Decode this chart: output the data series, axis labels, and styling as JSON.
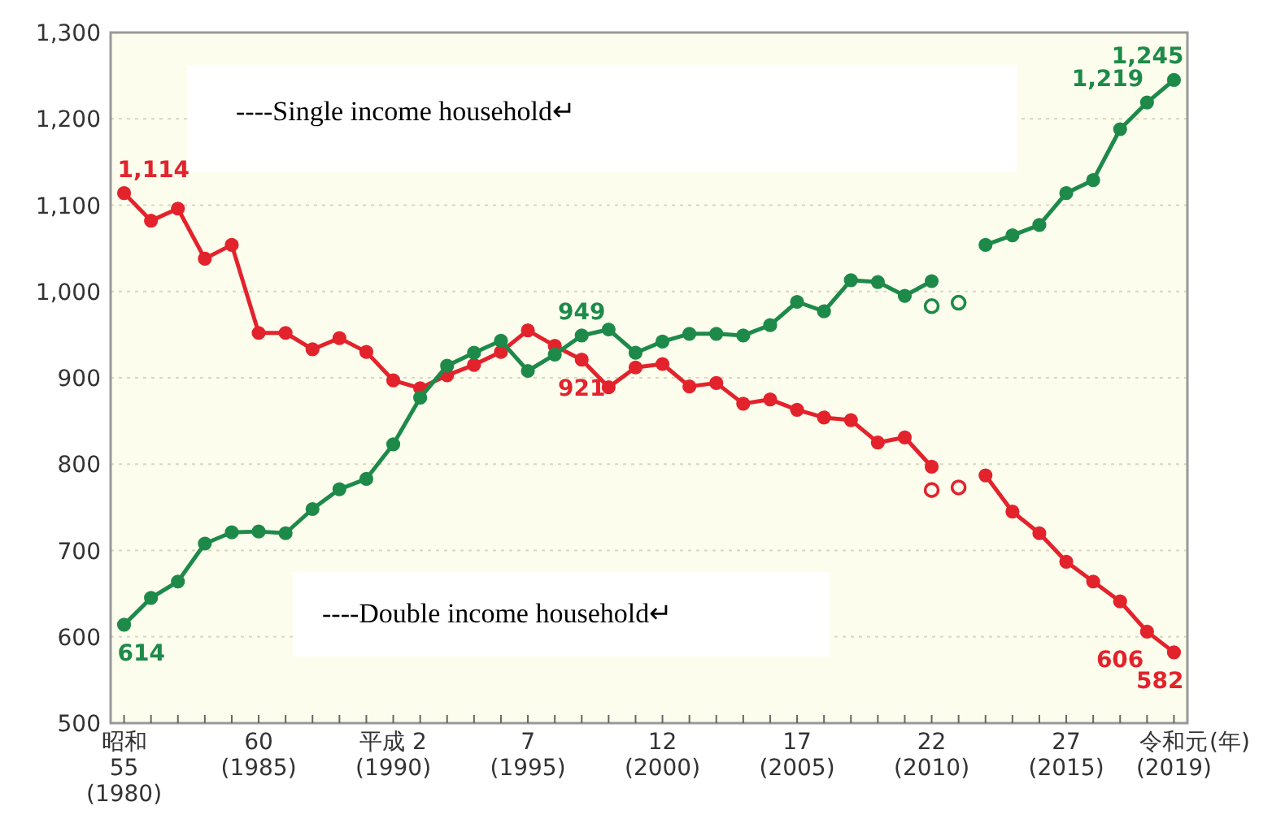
{
  "chart_data": {
    "type": "line",
    "xlabel": "(年)",
    "categories": [
      "昭和\n55\n(1980)",
      null,
      null,
      null,
      null,
      "60\n(1985)",
      null,
      null,
      null,
      null,
      "平成 2\n(1990)",
      null,
      null,
      null,
      null,
      "7\n(1995)",
      null,
      null,
      null,
      null,
      "12\n(2000)",
      null,
      null,
      null,
      null,
      "17\n(2005)",
      null,
      null,
      null,
      null,
      "22\n(2010)",
      null,
      null,
      null,
      null,
      "27\n(2015)",
      null,
      null,
      null,
      "令和元\n(2019)"
    ],
    "series": [
      {
        "color": "#e3232c",
        "values": [
          1114,
          1082,
          1096,
          1038,
          1054,
          952,
          952,
          933,
          946,
          930,
          897,
          888,
          903,
          915,
          930,
          955,
          937,
          921,
          889,
          912,
          916,
          890,
          894,
          870,
          875,
          863,
          854,
          851,
          825,
          831,
          797,
          null,
          787,
          745,
          720,
          687,
          664,
          641,
          606,
          582
        ],
        "value_labels": [
          "1,114",
          null,
          null,
          null,
          null,
          null,
          null,
          null,
          null,
          null,
          null,
          null,
          null,
          null,
          null,
          null,
          null,
          "921",
          null,
          null,
          null,
          null,
          null,
          null,
          null,
          null,
          null,
          null,
          null,
          null,
          null,
          null,
          null,
          null,
          null,
          null,
          null,
          null,
          "606",
          "582"
        ]
      },
      {
        "color": "#1e8a4a",
        "values": [
          614,
          645,
          664,
          708,
          721,
          722,
          720,
          748,
          771,
          783,
          823,
          877,
          914,
          929,
          943,
          908,
          927,
          949,
          956,
          929,
          942,
          951,
          951,
          949,
          961,
          988,
          977,
          1013,
          1011,
          995,
          1012,
          null,
          1054,
          1065,
          1077,
          1114,
          1129,
          1188,
          1219,
          1245
        ],
        "value_labels": [
          "614",
          null,
          null,
          null,
          null,
          null,
          null,
          null,
          null,
          null,
          null,
          null,
          null,
          null,
          null,
          null,
          null,
          "949",
          null,
          null,
          null,
          null,
          null,
          null,
          null,
          null,
          null,
          null,
          null,
          null,
          null,
          null,
          null,
          null,
          null,
          null,
          null,
          null,
          "1,219",
          "1,245"
        ]
      },
      {
        "type": "scatter",
        "color": "#e3232c",
        "values": [
          null,
          null,
          null,
          null,
          null,
          null,
          null,
          null,
          null,
          null,
          null,
          null,
          null,
          null,
          null,
          null,
          null,
          null,
          null,
          null,
          null,
          null,
          null,
          null,
          null,
          null,
          null,
          null,
          null,
          null,
          770,
          773,
          null,
          null,
          null,
          null,
          null,
          null,
          null,
          null
        ]
      },
      {
        "type": "scatter",
        "color": "#1e8a4a",
        "values": [
          null,
          null,
          null,
          null,
          null,
          null,
          null,
          null,
          null,
          null,
          null,
          null,
          null,
          null,
          null,
          null,
          null,
          null,
          null,
          null,
          null,
          null,
          null,
          null,
          null,
          null,
          null,
          null,
          null,
          null,
          983,
          987,
          null,
          null,
          null,
          null,
          null,
          null,
          null,
          null
        ]
      }
    ],
    "ylim": [
      500,
      1300
    ],
    "yticks": [
      {
        "value": 500,
        "label": "500"
      },
      {
        "value": 600,
        "label": "600"
      },
      {
        "value": 700,
        "label": "700"
      },
      {
        "value": 800,
        "label": "800"
      },
      {
        "value": 900,
        "label": "900"
      },
      {
        "value": 1000,
        "label": "1,000"
      },
      {
        "value": 1100,
        "label": "1,100"
      },
      {
        "value": 1200,
        "label": "1,200"
      },
      {
        "value": 1300,
        "label": "1,300"
      }
    ],
    "grid": "y",
    "marker": "circle",
    "line_style": "solid",
    "annotations": [
      "----Single income household↵",
      "----Double income household↵"
    ]
  }
}
